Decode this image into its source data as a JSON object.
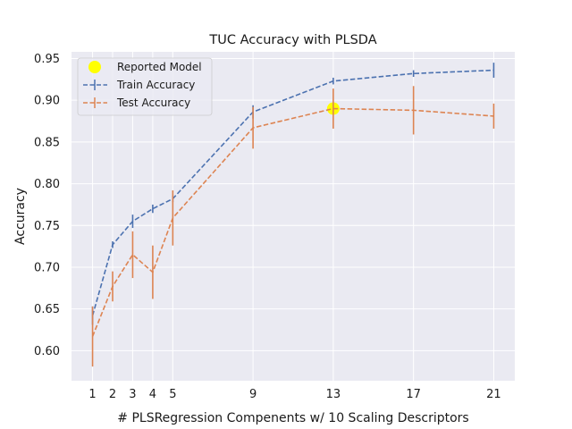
{
  "chart_data": {
    "type": "line",
    "title": "TUC Accuracy with PLSDA",
    "xlabel": "# PLSRegression Compenents w/ 10 Scaling Descriptors",
    "ylabel": "Accuracy",
    "x": [
      1,
      2,
      3,
      4,
      5,
      9,
      13,
      17,
      21
    ],
    "xticks": [
      "1",
      "2",
      "3",
      "4",
      "5",
      "9",
      "13",
      "17",
      "21"
    ],
    "xlim": [
      -0.05,
      22.05
    ],
    "yticks": [
      "0.60",
      "0.65",
      "0.70",
      "0.75",
      "0.80",
      "0.85",
      "0.90",
      "0.95"
    ],
    "ylim": [
      0.564,
      0.958
    ],
    "grid": true,
    "legend_position": "top-left",
    "series": [
      {
        "name": "Train Accuracy",
        "color": "#4c72b0",
        "linestyle": "dashed",
        "values": [
          0.642,
          0.727,
          0.755,
          0.77,
          0.782,
          0.886,
          0.923,
          0.932,
          0.936
        ],
        "error": [
          0.011,
          0.004,
          0.008,
          0.005,
          0.004,
          0.008,
          0.004,
          0.004,
          0.009
        ]
      },
      {
        "name": "Test Accuracy",
        "color": "#dd8452",
        "linestyle": "dashed",
        "values": [
          0.617,
          0.677,
          0.715,
          0.694,
          0.759,
          0.867,
          0.89,
          0.888,
          0.881
        ],
        "error": [
          0.036,
          0.018,
          0.028,
          0.032,
          0.033,
          0.025,
          0.024,
          0.029,
          0.015
        ]
      }
    ],
    "highlight": {
      "name": "Reported Model",
      "x": 13,
      "y": 0.89,
      "color": "#ffff00"
    }
  }
}
